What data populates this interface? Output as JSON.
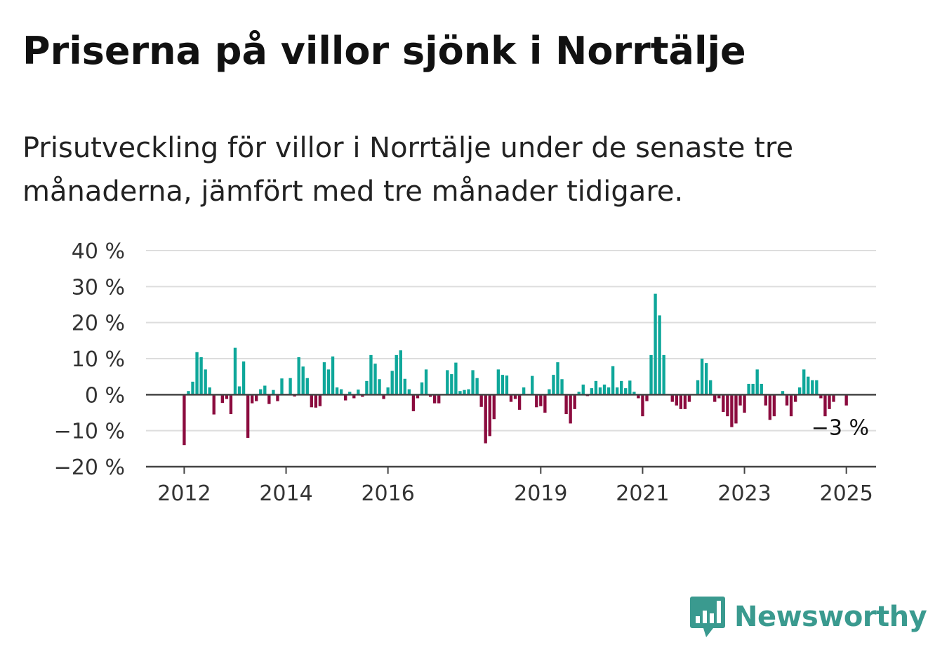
{
  "title": "Priserna på villor sjönk i Norrtälje",
  "subtitle": "Prisutveckling för villor i Norrtälje under de senaste tre månaderna, jämfört med tre månader tidigare.",
  "branding": {
    "name": "Newsworthy",
    "icon": "newsworthy-logo-icon",
    "color": "#3a9a8f"
  },
  "colors": {
    "positive": "#0ea79a",
    "negative": "#8b0b3e",
    "grid": "#dddddd",
    "zero_line": "#444444"
  },
  "chart_data": {
    "type": "bar",
    "title": "Priserna på villor sjönk i Norrtälje",
    "ylabel": "",
    "xlabel": "",
    "ylim": [
      -20,
      40
    ],
    "yticks": [
      -20,
      -10,
      0,
      10,
      20,
      30,
      40
    ],
    "ytick_labels": [
      "−20 %",
      "−10 %",
      "0 %",
      "10 %",
      "20 %",
      "30 %",
      "40 %"
    ],
    "xlim": [
      "2011-04",
      "2025-08"
    ],
    "xticks": [
      "2012-01",
      "2014-01",
      "2016-01",
      "2019-01",
      "2021-01",
      "2023-01",
      "2025-01"
    ],
    "xtick_labels": [
      "2012",
      "2014",
      "2016",
      "2019",
      "2021",
      "2023",
      "2025"
    ],
    "grid": true,
    "annotation": {
      "text": "−3 %",
      "date": "2025-01",
      "value": -3
    },
    "series": [
      {
        "values": [
          {
            "date": "2012-01",
            "value": -14
          },
          {
            "date": "2012-02",
            "value": 1
          },
          {
            "date": "2012-03",
            "value": 3.6
          },
          {
            "date": "2012-04",
            "value": 11.8
          },
          {
            "date": "2012-05",
            "value": 10.4
          },
          {
            "date": "2012-06",
            "value": 7
          },
          {
            "date": "2012-07",
            "value": 2
          },
          {
            "date": "2012-08",
            "value": -5.5
          },
          {
            "date": "2012-10",
            "value": -2.3
          },
          {
            "date": "2012-11",
            "value": -1.2
          },
          {
            "date": "2012-12",
            "value": -5.4
          },
          {
            "date": "2013-01",
            "value": 13
          },
          {
            "date": "2013-02",
            "value": 2.3
          },
          {
            "date": "2013-03",
            "value": 9.2
          },
          {
            "date": "2013-04",
            "value": -12
          },
          {
            "date": "2013-05",
            "value": -2.4
          },
          {
            "date": "2013-06",
            "value": -1.8
          },
          {
            "date": "2013-07",
            "value": 1.5
          },
          {
            "date": "2013-08",
            "value": 2.5
          },
          {
            "date": "2013-09",
            "value": -2.6
          },
          {
            "date": "2013-10",
            "value": 1.3
          },
          {
            "date": "2013-11",
            "value": -1.8
          },
          {
            "date": "2013-12",
            "value": 4.5
          },
          {
            "date": "2014-02",
            "value": 4.6
          },
          {
            "date": "2014-03",
            "value": -0.5
          },
          {
            "date": "2014-04",
            "value": 10.4
          },
          {
            "date": "2014-05",
            "value": 7.8
          },
          {
            "date": "2014-06",
            "value": 4.6
          },
          {
            "date": "2014-07",
            "value": -3.5
          },
          {
            "date": "2014-08",
            "value": -3.6
          },
          {
            "date": "2014-09",
            "value": -3.2
          },
          {
            "date": "2014-10",
            "value": 9
          },
          {
            "date": "2014-11",
            "value": 7
          },
          {
            "date": "2014-12",
            "value": 10.6
          },
          {
            "date": "2015-01",
            "value": 2
          },
          {
            "date": "2015-02",
            "value": 1.5
          },
          {
            "date": "2015-03",
            "value": -1.6
          },
          {
            "date": "2015-04",
            "value": 0.8
          },
          {
            "date": "2015-05",
            "value": -1
          },
          {
            "date": "2015-06",
            "value": 1.4
          },
          {
            "date": "2015-07",
            "value": -0.6
          },
          {
            "date": "2015-08",
            "value": 3.8
          },
          {
            "date": "2015-09",
            "value": 11
          },
          {
            "date": "2015-10",
            "value": 8.6
          },
          {
            "date": "2015-11",
            "value": 4.3
          },
          {
            "date": "2015-12",
            "value": -1.2
          },
          {
            "date": "2016-01",
            "value": 2
          },
          {
            "date": "2016-02",
            "value": 6.6
          },
          {
            "date": "2016-03",
            "value": 11
          },
          {
            "date": "2016-04",
            "value": 12.3
          },
          {
            "date": "2016-05",
            "value": 4.4
          },
          {
            "date": "2016-06",
            "value": 1.5
          },
          {
            "date": "2016-07",
            "value": -4.6
          },
          {
            "date": "2016-08",
            "value": -1
          },
          {
            "date": "2016-09",
            "value": 3.4
          },
          {
            "date": "2016-10",
            "value": 7
          },
          {
            "date": "2016-11",
            "value": -0.6
          },
          {
            "date": "2016-12",
            "value": -2.4
          },
          {
            "date": "2017-01",
            "value": -2.4
          },
          {
            "date": "2017-03",
            "value": 6.8
          },
          {
            "date": "2017-04",
            "value": 5.7
          },
          {
            "date": "2017-05",
            "value": 8.9
          },
          {
            "date": "2017-06",
            "value": 1
          },
          {
            "date": "2017-07",
            "value": 1.3
          },
          {
            "date": "2017-08",
            "value": 1.5
          },
          {
            "date": "2017-09",
            "value": 6.8
          },
          {
            "date": "2017-10",
            "value": 4.6
          },
          {
            "date": "2017-11",
            "value": -3.4
          },
          {
            "date": "2017-12",
            "value": -13.5
          },
          {
            "date": "2018-01",
            "value": -11.5
          },
          {
            "date": "2018-02",
            "value": -6.8
          },
          {
            "date": "2018-03",
            "value": 7
          },
          {
            "date": "2018-04",
            "value": 5.5
          },
          {
            "date": "2018-05",
            "value": 5.3
          },
          {
            "date": "2018-06",
            "value": -2
          },
          {
            "date": "2018-07",
            "value": -1.2
          },
          {
            "date": "2018-08",
            "value": -4.2
          },
          {
            "date": "2018-09",
            "value": 2
          },
          {
            "date": "2018-11",
            "value": 5.2
          },
          {
            "date": "2018-12",
            "value": -3.5
          },
          {
            "date": "2019-01",
            "value": -3.2
          },
          {
            "date": "2019-02",
            "value": -5
          },
          {
            "date": "2019-03",
            "value": 1.5
          },
          {
            "date": "2019-04",
            "value": 5.5
          },
          {
            "date": "2019-05",
            "value": 9
          },
          {
            "date": "2019-06",
            "value": 4.3
          },
          {
            "date": "2019-07",
            "value": -5.4
          },
          {
            "date": "2019-08",
            "value": -8
          },
          {
            "date": "2019-09",
            "value": -4
          },
          {
            "date": "2019-10",
            "value": 0.8
          },
          {
            "date": "2019-11",
            "value": 2.8
          },
          {
            "date": "2019-12",
            "value": -0.4
          },
          {
            "date": "2020-01",
            "value": 1.8
          },
          {
            "date": "2020-02",
            "value": 3.8
          },
          {
            "date": "2020-03",
            "value": 2
          },
          {
            "date": "2020-04",
            "value": 2.8
          },
          {
            "date": "2020-05",
            "value": 2
          },
          {
            "date": "2020-06",
            "value": 7.9
          },
          {
            "date": "2020-07",
            "value": 2
          },
          {
            "date": "2020-08",
            "value": 3.8
          },
          {
            "date": "2020-09",
            "value": 1.8
          },
          {
            "date": "2020-10",
            "value": 3.9
          },
          {
            "date": "2020-11",
            "value": 0.8
          },
          {
            "date": "2020-12",
            "value": -1
          },
          {
            "date": "2021-01",
            "value": -6
          },
          {
            "date": "2021-02",
            "value": -1.8
          },
          {
            "date": "2021-03",
            "value": 11
          },
          {
            "date": "2021-04",
            "value": 28
          },
          {
            "date": "2021-05",
            "value": 22
          },
          {
            "date": "2021-06",
            "value": 11
          },
          {
            "date": "2021-08",
            "value": -2
          },
          {
            "date": "2021-09",
            "value": -3
          },
          {
            "date": "2021-10",
            "value": -4
          },
          {
            "date": "2021-11",
            "value": -4
          },
          {
            "date": "2021-12",
            "value": -2
          },
          {
            "date": "2022-02",
            "value": 4
          },
          {
            "date": "2022-03",
            "value": 10
          },
          {
            "date": "2022-04",
            "value": 8.8
          },
          {
            "date": "2022-05",
            "value": 4
          },
          {
            "date": "2022-06",
            "value": -2
          },
          {
            "date": "2022-07",
            "value": -1
          },
          {
            "date": "2022-08",
            "value": -4.8
          },
          {
            "date": "2022-09",
            "value": -6
          },
          {
            "date": "2022-10",
            "value": -9
          },
          {
            "date": "2022-11",
            "value": -8
          },
          {
            "date": "2022-12",
            "value": -3
          },
          {
            "date": "2023-01",
            "value": -5
          },
          {
            "date": "2023-02",
            "value": 3
          },
          {
            "date": "2023-03",
            "value": 3
          },
          {
            "date": "2023-04",
            "value": 7
          },
          {
            "date": "2023-05",
            "value": 3
          },
          {
            "date": "2023-06",
            "value": -3
          },
          {
            "date": "2023-07",
            "value": -7
          },
          {
            "date": "2023-08",
            "value": -6
          },
          {
            "date": "2023-10",
            "value": 1
          },
          {
            "date": "2023-11",
            "value": -3
          },
          {
            "date": "2023-12",
            "value": -6
          },
          {
            "date": "2024-01",
            "value": -2
          },
          {
            "date": "2024-02",
            "value": 2
          },
          {
            "date": "2024-03",
            "value": 7
          },
          {
            "date": "2024-04",
            "value": 5
          },
          {
            "date": "2024-05",
            "value": 4
          },
          {
            "date": "2024-06",
            "value": 4
          },
          {
            "date": "2024-07",
            "value": -1
          },
          {
            "date": "2024-08",
            "value": -6
          },
          {
            "date": "2024-09",
            "value": -4
          },
          {
            "date": "2024-10",
            "value": -2
          },
          {
            "date": "2025-01",
            "value": -3
          }
        ]
      }
    ]
  }
}
